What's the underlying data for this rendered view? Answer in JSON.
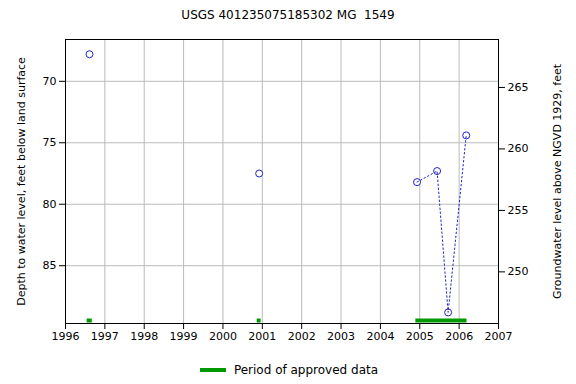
{
  "chart_data": {
    "type": "scatter",
    "title": "USGS 401235075185302 MG  1549",
    "ylabel": "Depth to water level, feet below land surface",
    "y2label": "Groundwater level above NGVD 1929, feet",
    "xlim": [
      1996,
      2007
    ],
    "xticks": [
      1996,
      1997,
      1998,
      1999,
      2000,
      2001,
      2002,
      2003,
      2004,
      2005,
      2006,
      2007
    ],
    "ylim": [
      66.6,
      89.7
    ],
    "yticks": [
      70,
      75,
      80,
      85
    ],
    "y2lim": [
      268.9,
      245.8
    ],
    "y2ticks": [
      265,
      260,
      255,
      250
    ],
    "grid": true,
    "legend": "bottom",
    "series": [
      {
        "type": "scatter",
        "color": "#2222cc",
        "marker": "circle-open",
        "x": [
          1996.61,
          2000.92,
          2004.93,
          2005.44,
          2005.72,
          2006.18
        ],
        "values": [
          67.8,
          77.5,
          78.2,
          77.3,
          88.8,
          74.4
        ]
      },
      {
        "type": "line",
        "color": "#2222cc",
        "line_style": "dotted",
        "x": [
          2004.93,
          2005.44,
          2005.72,
          2006.18
        ],
        "values": [
          78.2,
          77.3,
          88.8,
          74.4
        ]
      }
    ],
    "approved": {
      "name": "Period of approved data",
      "color": "#009900",
      "periods": [
        [
          1996.55,
          1996.68
        ],
        [
          2000.87,
          2000.97
        ],
        [
          2004.9,
          2006.2
        ]
      ]
    }
  }
}
